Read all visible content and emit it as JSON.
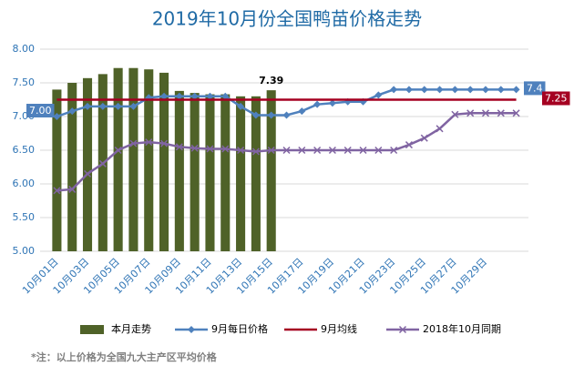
{
  "chart_data": {
    "type": "bar_line",
    "title": "2019年10月份全国鸭苗价格走势",
    "categories": [
      "10月01日",
      null,
      "10月03日",
      null,
      "10月05日",
      null,
      "10月07日",
      null,
      "10月09日",
      null,
      "10月11日",
      null,
      "10月13日",
      null,
      "10月15日",
      null,
      "10月17日",
      null,
      "10月19日",
      null,
      "10月21日",
      null,
      "10月23日",
      null,
      "10月25日",
      null,
      "10月27日",
      null,
      "10月29日",
      null,
      null
    ],
    "ylim": [
      5,
      8
    ],
    "yticks": [
      {
        "value": 5,
        "label": "5.00"
      },
      {
        "value": 5.5,
        "label": "5.50"
      },
      {
        "value": 6,
        "label": "6.00"
      },
      {
        "value": 6.5,
        "label": "6.50"
      },
      {
        "value": 7,
        "label": "7.00"
      },
      {
        "value": 7.5,
        "label": "7.50"
      },
      {
        "value": 8,
        "label": "8.00"
      }
    ],
    "grid": true,
    "legend": "bottom",
    "series": [
      {
        "name": "本月走势",
        "kind": "bar",
        "color": "#4f6228",
        "values": [
          7.4,
          7.5,
          7.57,
          7.63,
          7.72,
          7.72,
          7.7,
          7.65,
          7.38,
          7.35,
          7.33,
          7.33,
          7.3,
          7.3,
          7.39,
          null,
          null,
          null,
          null,
          null,
          null,
          null,
          null,
          null,
          null,
          null,
          null,
          null,
          null,
          null,
          null
        ],
        "value_labels": [
          null,
          null,
          null,
          null,
          null,
          null,
          null,
          null,
          null,
          null,
          null,
          null,
          null,
          null,
          "7.39",
          null,
          null,
          null,
          null,
          null,
          null,
          null,
          null,
          null,
          null,
          null,
          null,
          null,
          null,
          null,
          null
        ]
      },
      {
        "name": "9月每日价格",
        "kind": "line",
        "marker": "diamond",
        "color": "#4f81bd",
        "values": [
          7.0,
          7.08,
          7.15,
          7.15,
          7.15,
          7.15,
          7.28,
          7.3,
          7.3,
          7.3,
          7.3,
          7.3,
          7.15,
          7.02,
          7.02,
          7.02,
          7.08,
          7.18,
          7.2,
          7.22,
          7.22,
          7.32,
          7.4,
          7.4,
          7.4,
          7.4,
          7.4,
          7.4,
          7.4,
          7.4,
          7.4
        ],
        "value_labels": [
          "7.00",
          null,
          null,
          null,
          null,
          null,
          null,
          null,
          null,
          null,
          null,
          null,
          null,
          null,
          null,
          null,
          null,
          null,
          null,
          null,
          null,
          null,
          null,
          null,
          null,
          null,
          null,
          null,
          null,
          null,
          "7.4"
        ]
      },
      {
        "name": "9月均线",
        "kind": "line",
        "marker": "none",
        "color": "#a50021",
        "values": [
          7.25,
          7.25,
          7.25,
          7.25,
          7.25,
          7.25,
          7.25,
          7.25,
          7.25,
          7.25,
          7.25,
          7.25,
          7.25,
          7.25,
          7.25,
          7.25,
          7.25,
          7.25,
          7.25,
          7.25,
          7.25,
          7.25,
          7.25,
          7.25,
          7.25,
          7.25,
          7.25,
          7.25,
          7.25,
          7.25,
          7.25
        ],
        "value_labels": [
          null,
          null,
          null,
          null,
          null,
          null,
          null,
          null,
          null,
          null,
          null,
          null,
          null,
          null,
          null,
          null,
          null,
          null,
          null,
          null,
          null,
          null,
          null,
          null,
          null,
          null,
          null,
          null,
          null,
          null,
          "7.25"
        ]
      },
      {
        "name": "2018年10月同期",
        "kind": "line",
        "marker": "x",
        "color": "#8064a2",
        "values": [
          5.9,
          5.92,
          6.15,
          6.3,
          6.5,
          6.6,
          6.62,
          6.6,
          6.55,
          6.53,
          6.52,
          6.52,
          6.5,
          6.48,
          6.5,
          6.5,
          6.5,
          6.5,
          6.5,
          6.5,
          6.5,
          6.5,
          6.5,
          6.58,
          6.68,
          6.82,
          7.03,
          7.05,
          7.05,
          7.05,
          7.05
        ]
      }
    ],
    "footnote": "*注：以上价格为全国九大主产区平均价格"
  }
}
